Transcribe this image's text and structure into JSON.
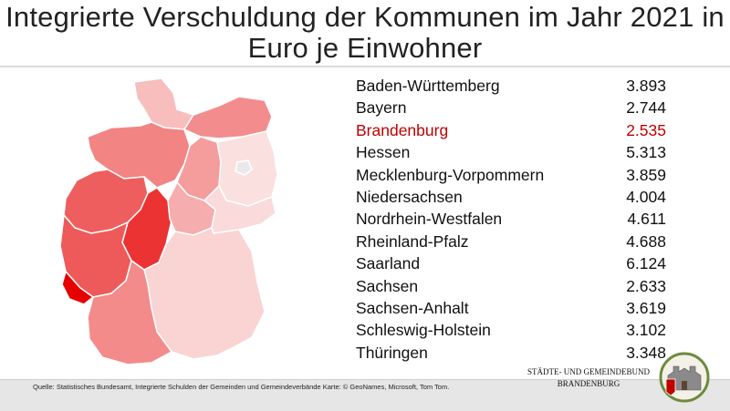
{
  "title": "Integrierte Verschuldung der Kommunen im Jahr 2021 in Euro je Einwohner",
  "source": "Quelle: Statistisches Bundesamt, Integrierte Schulden der Gemeinden und Gemeindeverbände  Karte: © GeoNames, Microsoft, Tom Tom.",
  "association": {
    "line1": "STÄDTE-  UND GEMEINDEBUND",
    "line2": "BRANDENBURG"
  },
  "colors": {
    "highlight": "#c00000",
    "scale_low": "#fbe0e0",
    "scale_high": "#e60000"
  },
  "chart_data": {
    "type": "table",
    "map": "choropleth",
    "rows": [
      {
        "state": "Baden-Württemberg",
        "value": "3.893"
      },
      {
        "state": "Bayern",
        "value": "2.744"
      },
      {
        "state": "Brandenburg",
        "value": "2.535",
        "highlight": true
      },
      {
        "state": "Hessen",
        "value": "5.313"
      },
      {
        "state": "Mecklenburg-Vorpommern",
        "value": "3.859"
      },
      {
        "state": "Niedersachsen",
        "value": "4.004"
      },
      {
        "state": "Nordrhein-Westfalen",
        "value": "4.611"
      },
      {
        "state": "Rheinland-Pfalz",
        "value": "4.688"
      },
      {
        "state": "Saarland",
        "value": "6.124"
      },
      {
        "state": "Sachsen",
        "value": "2.633"
      },
      {
        "state": "Sachsen-Anhalt",
        "value": "3.619"
      },
      {
        "state": "Schleswig-Holstein",
        "value": "3.102"
      },
      {
        "state": "Thüringen",
        "value": "3.348"
      }
    ]
  }
}
